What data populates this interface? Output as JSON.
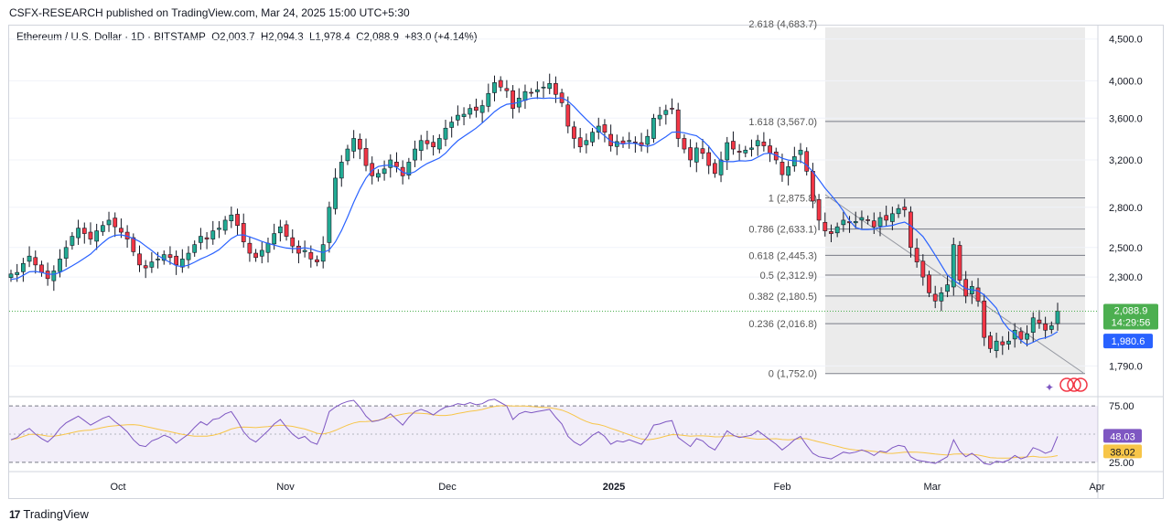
{
  "header": {
    "publisher": "CSFX-RESEARCH published on TradingView.com, Mar 24, 2025 15:00 UTC+5:30"
  },
  "legend": {
    "symbol": "Ethereum / U.S. Dollar · 1D · BITSTAMP",
    "open": "O2,003.7",
    "high": "H2,094.3",
    "low": "L1,978.4",
    "close": "C2,088.9",
    "change": "+83.0 (+4.14%)"
  },
  "brand": {
    "logo": "17",
    "name": "TradingView"
  },
  "colors": {
    "up": "#22ab94",
    "down": "#f23645",
    "ma": "#2962ff",
    "rsi": "#7e57c2",
    "rsi_ma": "#f7c548",
    "price_tag": "#4caf50",
    "ma_tag": "#2962ff"
  },
  "chart_data": [
    {
      "type": "candlestick",
      "title": "",
      "symbol": "ETHUSD",
      "exchange": "BITSTAMP",
      "timeframe": "1D",
      "y_axis_ticks": [
        "4,500.0",
        "4,000.0",
        "3,600.0",
        "3,200.0",
        "2,800.0",
        "2,500.0",
        "2,300.0",
        "1,790.0"
      ],
      "x_axis_ticks": [
        "Oct",
        "Nov",
        "Dec",
        "2025",
        "Feb",
        "Mar",
        "Apr"
      ],
      "y_scale": "log",
      "ylim": [
        1650,
        4650
      ],
      "last_price": "2,088.9",
      "countdown": "14:29:56",
      "ma_value": "1,980.6",
      "fibonacci": [
        {
          "label": "1.618 (3,567.0)",
          "value": 3567.0
        },
        {
          "label": "1 (2,875.8)",
          "value": 2875.8
        },
        {
          "label": "0.786 (2,633.1)",
          "value": 2633.1
        },
        {
          "label": "0.618 (2,445.3)",
          "value": 2445.3
        },
        {
          "label": "0.5 (2,312.9)",
          "value": 2312.9
        },
        {
          "label": "0.382 (2,180.5)",
          "value": 2180.5
        },
        {
          "label": "0.236 (2,016.8)",
          "value": 2016.8
        },
        {
          "label": "0 (1,752.0)",
          "value": 1752.0
        }
      ],
      "fib_top_label": "2.618 (4,683.7)",
      "close_series": [
        2320,
        2330,
        2390,
        2440,
        2380,
        2330,
        2290,
        2340,
        2420,
        2500,
        2580,
        2640,
        2600,
        2560,
        2620,
        2660,
        2700,
        2650,
        2610,
        2560,
        2470,
        2380,
        2360,
        2400,
        2420,
        2450,
        2430,
        2380,
        2420,
        2460,
        2520,
        2580,
        2560,
        2620,
        2640,
        2700,
        2740,
        2660,
        2540,
        2460,
        2430,
        2480,
        2530,
        2600,
        2650,
        2580,
        2510,
        2460,
        2480,
        2420,
        2400,
        2520,
        2800,
        3040,
        3180,
        3300,
        3400,
        3300,
        3150,
        3060,
        3080,
        3120,
        3200,
        3140,
        3060,
        3180,
        3300,
        3380,
        3350,
        3320,
        3400,
        3500,
        3560,
        3630,
        3640,
        3700,
        3680,
        3730,
        3860,
        3980,
        3930,
        3890,
        3700,
        3810,
        3880,
        3870,
        3900,
        3930,
        3970,
        3850,
        3760,
        3520,
        3400,
        3320,
        3380,
        3460,
        3520,
        3460,
        3330,
        3370,
        3350,
        3380,
        3360,
        3330,
        3420,
        3600,
        3630,
        3680,
        3700,
        3400,
        3300,
        3200,
        3310,
        3260,
        3150,
        3080,
        3200,
        3360,
        3300,
        3270,
        3290,
        3310,
        3380,
        3330,
        3260,
        3200,
        3070,
        3140,
        3230,
        3290,
        3100,
        2850,
        2700,
        2620,
        2600,
        2650,
        2700,
        2680,
        2690,
        2720,
        2700,
        2650,
        2720,
        2700,
        2750,
        2790,
        2780,
        2500,
        2400,
        2300,
        2200,
        2150,
        2200,
        2250,
        2520,
        2280,
        2180,
        2240,
        2150,
        1940,
        1880,
        1920,
        1900,
        1920,
        1980,
        1930,
        1960,
        2050,
        2020,
        1980,
        2005,
        2088.9
      ],
      "rsi": {
        "levels": [
          "75.00",
          "25.00"
        ],
        "value": "48.03",
        "ma_value": "38.02",
        "ylim": [
          20,
          80
        ],
        "series": [
          45,
          47,
          52,
          55,
          50,
          46,
          43,
          48,
          55,
          60,
          63,
          66,
          62,
          58,
          61,
          64,
          66,
          61,
          57,
          52,
          45,
          40,
          39,
          44,
          46,
          49,
          47,
          42,
          46,
          50,
          56,
          61,
          58,
          63,
          64,
          68,
          70,
          62,
          52,
          46,
          43,
          48,
          53,
          59,
          63,
          56,
          50,
          46,
          48,
          43,
          41,
          53,
          70,
          74,
          77,
          79,
          80,
          74,
          66,
          61,
          62,
          64,
          68,
          63,
          58,
          65,
          70,
          72,
          70,
          67,
          71,
          74,
          75,
          77,
          76,
          78,
          76,
          77,
          80,
          81,
          78,
          75,
          63,
          68,
          70,
          69,
          70,
          71,
          72,
          65,
          59,
          48,
          43,
          40,
          44,
          49,
          52,
          48,
          41,
          44,
          43,
          45,
          43,
          41,
          48,
          58,
          59,
          61,
          62,
          47,
          43,
          39,
          46,
          44,
          39,
          36,
          44,
          53,
          49,
          47,
          48,
          49,
          53,
          49,
          45,
          41,
          36,
          40,
          45,
          48,
          40,
          33,
          30,
          29,
          28,
          31,
          34,
          33,
          34,
          36,
          34,
          31,
          35,
          34,
          38,
          40,
          39,
          30,
          27,
          26,
          25,
          24,
          27,
          30,
          45,
          35,
          30,
          33,
          29,
          24,
          23,
          26,
          25,
          27,
          31,
          28,
          30,
          38,
          36,
          33,
          35,
          48.03
        ]
      }
    }
  ]
}
